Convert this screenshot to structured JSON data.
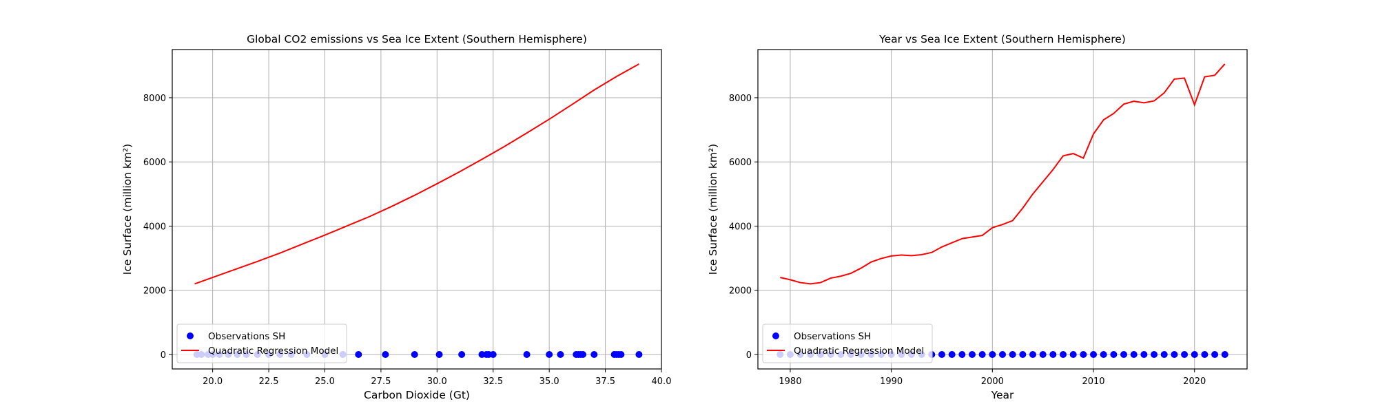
{
  "chart_data": [
    {
      "type": "scatter+line",
      "title": "Global CO2 emissions vs Sea Ice Extent (Southern Hemisphere)",
      "xlabel": "Carbon Dioxide (Gt)",
      "ylabel": "Ice Surface (million km²)",
      "xlim": [
        18.2,
        40.0
      ],
      "ylim": [
        -450,
        9500
      ],
      "xticks": [
        "20.0",
        "22.5",
        "25.0",
        "27.5",
        "30.0",
        "32.5",
        "35.0",
        "37.5",
        "40.0"
      ],
      "xtick_values": [
        20.0,
        22.5,
        25.0,
        27.5,
        30.0,
        32.5,
        35.0,
        37.5,
        40.0
      ],
      "yticks": [
        "0",
        "2000",
        "4000",
        "6000",
        "8000"
      ],
      "ytick_values": [
        0,
        2000,
        4000,
        6000,
        8000
      ],
      "grid": true,
      "legend_position": "lower left",
      "series": [
        {
          "name": "Observations SH",
          "kind": "scatter",
          "color": "#0000ff",
          "x": [
            19.3,
            19.5,
            19.8,
            20.0,
            20.3,
            20.7,
            21.1,
            21.5,
            22.0,
            22.5,
            23.0,
            23.5,
            24.2,
            25.0,
            25.8,
            26.5,
            27.7,
            29.0,
            30.1,
            31.1,
            32.0,
            32.2,
            32.3,
            32.5,
            34.0,
            35.0,
            35.5,
            36.2,
            36.3,
            36.4,
            36.5,
            37.0,
            37.9,
            38.0,
            38.1,
            38.2,
            39.0
          ],
          "y": [
            0,
            0,
            0,
            0,
            0,
            0,
            0,
            0,
            0,
            0,
            0,
            0,
            0,
            0,
            0,
            0,
            0,
            0,
            0,
            0,
            0,
            0,
            0,
            0,
            0,
            0,
            0,
            0,
            0,
            0,
            0,
            0,
            0,
            0,
            0,
            0,
            0
          ]
        },
        {
          "name": "Quadratic Regression Model",
          "kind": "line",
          "color": "#ff0000",
          "x": [
            19.2,
            20.0,
            21.0,
            22.0,
            23.0,
            24.0,
            25.0,
            26.0,
            27.0,
            28.0,
            29.0,
            30.0,
            31.0,
            32.0,
            33.0,
            34.0,
            35.0,
            36.0,
            37.0,
            38.0,
            39.0
          ],
          "y": [
            2200,
            2400,
            2650,
            2900,
            3160,
            3440,
            3720,
            4010,
            4300,
            4620,
            4960,
            5320,
            5690,
            6080,
            6480,
            6900,
            7330,
            7780,
            8240,
            8660,
            9050
          ]
        }
      ]
    },
    {
      "type": "scatter+line",
      "title": "Year vs Sea Ice Extent (Southern Hemisphere)",
      "xlabel": "Year",
      "ylabel": "Ice Surface (million km²)",
      "xlim": [
        1976.8,
        2025.2
      ],
      "ylim": [
        -450,
        9500
      ],
      "xticks": [
        "1980",
        "1990",
        "2000",
        "2010",
        "2020"
      ],
      "xtick_values": [
        1980,
        1990,
        2000,
        2010,
        2020
      ],
      "yticks": [
        "0",
        "2000",
        "4000",
        "6000",
        "8000"
      ],
      "ytick_values": [
        0,
        2000,
        4000,
        6000,
        8000
      ],
      "grid": true,
      "legend_position": "lower left",
      "series": [
        {
          "name": "Observations SH",
          "kind": "scatter",
          "color": "#0000ff",
          "x": [
            1979,
            1980,
            1981,
            1982,
            1983,
            1984,
            1985,
            1986,
            1987,
            1988,
            1989,
            1990,
            1991,
            1992,
            1993,
            1994,
            1995,
            1996,
            1997,
            1998,
            1999,
            2000,
            2001,
            2002,
            2003,
            2004,
            2005,
            2006,
            2007,
            2008,
            2009,
            2010,
            2011,
            2012,
            2013,
            2014,
            2015,
            2016,
            2017,
            2018,
            2019,
            2020,
            2021,
            2022,
            2023
          ],
          "y": [
            0,
            0,
            0,
            0,
            0,
            0,
            0,
            0,
            0,
            0,
            0,
            0,
            0,
            0,
            0,
            0,
            0,
            0,
            0,
            0,
            0,
            0,
            0,
            0,
            0,
            0,
            0,
            0,
            0,
            0,
            0,
            0,
            0,
            0,
            0,
            0,
            0,
            0,
            0,
            0,
            0,
            0,
            0,
            0,
            0
          ]
        },
        {
          "name": "Quadratic Regression Model",
          "kind": "line",
          "color": "#ff0000",
          "x": [
            1979,
            1980,
            1981,
            1982,
            1983,
            1984,
            1985,
            1986,
            1987,
            1988,
            1989,
            1990,
            1991,
            1992,
            1993,
            1994,
            1995,
            1996,
            1997,
            1998,
            1999,
            2000,
            2001,
            2002,
            2003,
            2004,
            2005,
            2006,
            2007,
            2008,
            2009,
            2010,
            2011,
            2012,
            2013,
            2014,
            2015,
            2016,
            2017,
            2018,
            2019,
            2020,
            2021,
            2022,
            2023
          ],
          "y": [
            2400,
            2330,
            2240,
            2200,
            2240,
            2380,
            2440,
            2530,
            2690,
            2880,
            2990,
            3070,
            3100,
            3080,
            3110,
            3180,
            3350,
            3480,
            3610,
            3660,
            3710,
            3950,
            4050,
            4170,
            4560,
            5000,
            5380,
            5760,
            6190,
            6260,
            6120,
            6870,
            7310,
            7510,
            7800,
            7890,
            7840,
            7900,
            8150,
            8580,
            8610,
            7780,
            8650,
            8700,
            9050
          ]
        }
      ]
    }
  ]
}
